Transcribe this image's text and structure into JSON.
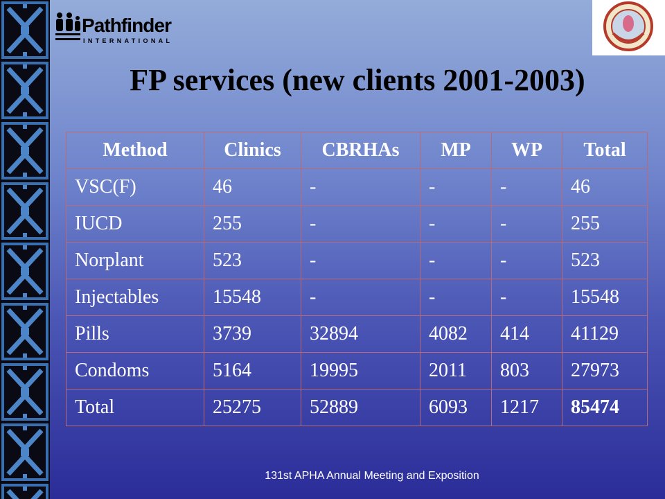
{
  "header": {
    "logo_name": "Pathfinder",
    "logo_sub": "INTERNATIONAL"
  },
  "title": "FP services (new clients 2001-2003)",
  "table": {
    "columns": [
      "Method",
      "Clinics",
      "CBRHAs",
      "MP",
      "WP",
      "Total"
    ],
    "rows": [
      [
        "VSC(F)",
        "46",
        "-",
        "-",
        "-",
        "46"
      ],
      [
        "IUCD",
        "255",
        "-",
        "-",
        "-",
        "255"
      ],
      [
        "Norplant",
        "523",
        "-",
        "-",
        "-",
        "523"
      ],
      [
        "Injectables",
        "15548",
        "-",
        "-",
        "-",
        "15548"
      ],
      [
        "Pills",
        "3739",
        "32894",
        "4082",
        "414",
        "41129"
      ],
      [
        "Condoms",
        "5164",
        "19995",
        "2011",
        "803",
        "27973"
      ],
      [
        "Total",
        "25275",
        "52889",
        "6093",
        "1217",
        "85474"
      ]
    ]
  },
  "footer": "131st APHA Annual Meeting and Exposition"
}
